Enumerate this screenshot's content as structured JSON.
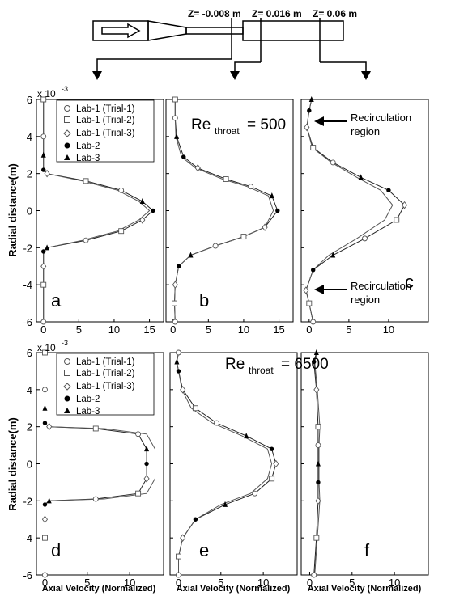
{
  "schematic": {
    "z_labels": [
      "Z= -0.008 m",
      "Z= 0.016 m",
      "Z= 0.06 m"
    ]
  },
  "ylabel": "Radial distance(m)",
  "xlabel": "Axial Velocity (Normalized)",
  "y_exponent": {
    "base": "x 10",
    "exp": "-3"
  },
  "legend": {
    "entries": [
      {
        "label": "Lab-1 (Trial-1)",
        "marker": "circle-open"
      },
      {
        "label": "Lab-1 (Trial-2)",
        "marker": "square-open"
      },
      {
        "label": "Lab-1 (Trial-3)",
        "marker": "diamond-open"
      },
      {
        "label": "Lab-2",
        "marker": "circle-filled"
      },
      {
        "label": "Lab-3",
        "marker": "triangle-filled"
      }
    ]
  },
  "row_titles": [
    {
      "main": "Re",
      "sub": "throat",
      "value": "= 500"
    },
    {
      "main": "Re",
      "sub": "throat",
      "value": "= 6500"
    }
  ],
  "annotations": {
    "recirc_top": [
      "Recirculation",
      "region"
    ],
    "recirc_bottom": [
      "Recirculation",
      "region"
    ]
  },
  "chart_data": [
    {
      "type": "line",
      "panel": "a",
      "row": 1,
      "xlim": [
        -1,
        17
      ],
      "ylim": [
        -6,
        6
      ],
      "xticks": [
        0,
        5,
        10,
        15
      ],
      "yticks": [
        -6,
        -4,
        -2,
        0,
        2,
        4,
        6
      ],
      "series": [
        {
          "x": [
            0,
            0,
            0,
            0,
            0.5,
            6,
            11,
            14,
            15.5,
            14,
            11,
            6,
            0.5,
            0,
            0,
            0,
            0
          ],
          "y": [
            -6,
            -4,
            -3,
            -2.2,
            -2,
            -1.6,
            -1.1,
            -0.5,
            0,
            0.5,
            1.1,
            1.6,
            2,
            2.2,
            3,
            4,
            6
          ]
        },
        {
          "x": [
            0,
            0,
            0,
            0,
            0.5,
            5.5,
            10.5,
            13.5,
            15,
            13.5,
            10.5,
            5.5,
            0.5,
            0,
            0,
            0,
            0
          ],
          "y": [
            -6,
            -4,
            -3,
            -2.2,
            -2,
            -1.6,
            -1.1,
            -0.5,
            0,
            0.5,
            1.1,
            1.6,
            2,
            2.2,
            3,
            4,
            6
          ]
        }
      ]
    },
    {
      "type": "line",
      "panel": "b",
      "row": 1,
      "xlim": [
        -1,
        17
      ],
      "ylim": [
        -6,
        6
      ],
      "xticks": [
        0,
        5,
        10,
        15
      ],
      "yticks": [
        -6,
        -4,
        -2,
        0,
        2,
        4,
        6
      ],
      "series": [
        {
          "x": [
            0.3,
            0.2,
            0.3,
            0.8,
            2.5,
            6,
            10,
            13,
            14.8,
            14,
            11,
            7.5,
            3.5,
            1.5,
            0.5,
            0.3,
            0.3
          ],
          "y": [
            -6,
            -5,
            -4,
            -3,
            -2.4,
            -1.9,
            -1.4,
            -0.9,
            0,
            0.8,
            1.3,
            1.7,
            2.3,
            2.9,
            4,
            5,
            6
          ]
        },
        {
          "x": [
            0.3,
            0.2,
            0.3,
            0.8,
            2.5,
            6,
            10,
            13,
            14.2,
            13.5,
            10.5,
            7,
            3.2,
            1.2,
            0.4,
            0.3,
            0.3
          ],
          "y": [
            -6,
            -5,
            -4,
            -3,
            -2.4,
            -1.9,
            -1.4,
            -0.9,
            0,
            0.8,
            1.3,
            1.7,
            2.3,
            2.9,
            4,
            5,
            6
          ]
        }
      ]
    },
    {
      "type": "line",
      "panel": "c",
      "row": 1,
      "xlim": [
        -1,
        15
      ],
      "ylim": [
        -6,
        6
      ],
      "xticks": [
        0,
        5,
        10
      ],
      "yticks": [
        -6,
        -4,
        -2,
        0,
        2,
        4,
        6
      ],
      "series": [
        {
          "x": [
            0.5,
            0,
            -0.4,
            0.5,
            3,
            7,
            11,
            12,
            10,
            6.5,
            3,
            0.5,
            -0.3,
            0,
            0.3
          ],
          "y": [
            -6,
            -5,
            -4.3,
            -3.2,
            -2.4,
            -1.5,
            -0.5,
            0.3,
            1.1,
            1.8,
            2.6,
            3.4,
            4.5,
            5.4,
            6
          ]
        },
        {
          "x": [
            0.5,
            0,
            -0.4,
            0.5,
            2.5,
            6,
            9.5,
            10.5,
            9,
            6,
            2.8,
            0.4,
            -0.3,
            0,
            0.3
          ],
          "y": [
            -6,
            -5,
            -4.3,
            -3.2,
            -2.4,
            -1.5,
            -0.5,
            0.3,
            1.1,
            1.8,
            2.6,
            3.4,
            4.5,
            5.4,
            6
          ]
        }
      ]
    },
    {
      "type": "line",
      "panel": "d",
      "row": 2,
      "xlim": [
        -1,
        14
      ],
      "ylim": [
        -6,
        6
      ],
      "xticks": [
        0,
        5,
        10
      ],
      "yticks": [
        -6,
        -4,
        -2,
        0,
        2,
        4,
        6
      ],
      "series": [
        {
          "x": [
            0,
            0,
            0,
            0,
            0.5,
            6,
            11,
            12,
            12,
            12,
            11,
            6,
            0.5,
            0,
            0,
            0,
            0
          ],
          "y": [
            -6,
            -4,
            -3,
            -2.2,
            -2,
            -1.9,
            -1.6,
            -0.8,
            0,
            0.8,
            1.6,
            1.9,
            2,
            2.2,
            3,
            4,
            6
          ]
        },
        {
          "x": [
            0,
            0,
            0,
            0,
            0.5,
            7,
            12,
            13,
            13,
            13,
            12,
            7,
            0.5,
            0,
            0,
            0,
            0
          ],
          "y": [
            -6,
            -4,
            -3,
            -2.2,
            -2,
            -1.9,
            -1.6,
            -0.8,
            0,
            0.8,
            1.6,
            1.9,
            2,
            2.2,
            3,
            4,
            6
          ]
        }
      ]
    },
    {
      "type": "line",
      "panel": "e",
      "row": 2,
      "xlim": [
        -1,
        14
      ],
      "ylim": [
        -6,
        6
      ],
      "xticks": [
        0,
        5,
        10
      ],
      "yticks": [
        -6,
        -4,
        -2,
        0,
        2,
        4,
        6
      ],
      "series": [
        {
          "x": [
            0,
            0,
            0.5,
            2,
            5.5,
            9,
            11,
            11.5,
            11,
            8,
            4.5,
            2,
            0.5,
            0,
            -0.2,
            0
          ],
          "y": [
            -6,
            -5,
            -4,
            -3,
            -2.2,
            -1.6,
            -0.8,
            0,
            0.8,
            1.5,
            2.2,
            3,
            4,
            5,
            5.5,
            6
          ]
        },
        {
          "x": [
            0,
            0,
            0.5,
            2,
            5,
            8.5,
            10.5,
            11,
            10.5,
            7.5,
            4,
            1.5,
            0.4,
            0,
            -0.2,
            0
          ],
          "y": [
            -6,
            -5,
            -4,
            -3,
            -2.2,
            -1.6,
            -0.8,
            0,
            0.8,
            1.5,
            2.2,
            3,
            4,
            5,
            5.5,
            6
          ]
        }
      ]
    },
    {
      "type": "line",
      "panel": "f",
      "row": 2,
      "xlim": [
        -1,
        14
      ],
      "ylim": [
        -6,
        6
      ],
      "xticks": [
        0,
        5,
        10
      ],
      "yticks": [
        -6,
        -4,
        -2,
        0,
        2,
        4,
        6
      ],
      "series": [
        {
          "x": [
            0.5,
            0.8,
            1,
            1,
            1,
            1,
            1,
            0.8,
            0.5,
            0.8
          ],
          "y": [
            -6,
            -4,
            -2,
            -1,
            0,
            1,
            2,
            4,
            5.5,
            6
          ]
        },
        {
          "x": [
            0.6,
            0.9,
            1.2,
            1.1,
            1.1,
            1.1,
            1.2,
            0.9,
            0.6,
            0.9
          ],
          "y": [
            -6,
            -4,
            -2,
            -1,
            0,
            1,
            2,
            4,
            5.5,
            6
          ]
        }
      ]
    }
  ]
}
